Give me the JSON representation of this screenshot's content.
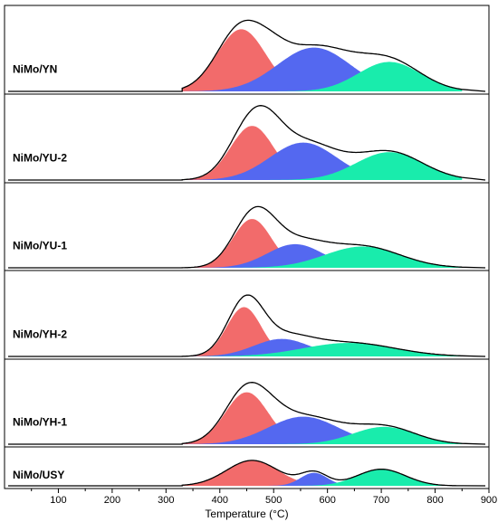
{
  "chart_data": {
    "type": "area",
    "xlabel": "Temperature (°C)",
    "xlim": [
      0,
      900
    ],
    "x_ticks": [
      100,
      200,
      300,
      400,
      500,
      600,
      700,
      800,
      900
    ],
    "colors": {
      "peak1": "#f26b6b",
      "peak2": "#5468f0",
      "peak3": "#19ecac",
      "envelope": "#000000"
    },
    "panels": [
      {
        "label": "NiMo/YN",
        "peaks": [
          {
            "center": 440,
            "amplitude": 0.78,
            "width": 45
          },
          {
            "center": 575,
            "amplitude": 0.55,
            "width": 68
          },
          {
            "center": 715,
            "amplitude": 0.37,
            "width": 58
          }
        ],
        "envelope_bump": {
          "center": 500,
          "amplitude": 0.12,
          "width": 30
        }
      },
      {
        "label": "NiMo/YU-2",
        "peaks": [
          {
            "center": 460,
            "amplitude": 0.68,
            "width": 40
          },
          {
            "center": 555,
            "amplitude": 0.47,
            "width": 62
          },
          {
            "center": 715,
            "amplitude": 0.35,
            "width": 62
          }
        ],
        "envelope_bump": {
          "center": 495,
          "amplitude": 0.12,
          "width": 30
        }
      },
      {
        "label": "NiMo/YU-1",
        "peaks": [
          {
            "center": 460,
            "amplitude": 0.62,
            "width": 36
          },
          {
            "center": 540,
            "amplitude": 0.3,
            "width": 52
          },
          {
            "center": 665,
            "amplitude": 0.27,
            "width": 70
          }
        ],
        "envelope_bump": {
          "center": 495,
          "amplitude": 0.08,
          "width": 28
        }
      },
      {
        "label": "NiMo/YH-2",
        "peaks": [
          {
            "center": 445,
            "amplitude": 0.62,
            "width": 32
          },
          {
            "center": 515,
            "amplitude": 0.22,
            "width": 52
          },
          {
            "center": 640,
            "amplitude": 0.17,
            "width": 85
          }
        ],
        "envelope_bump": {
          "center": 470,
          "amplitude": 0.06,
          "width": 25
        }
      },
      {
        "label": "NiMo/YH-1",
        "peaks": [
          {
            "center": 450,
            "amplitude": 0.66,
            "width": 40
          },
          {
            "center": 555,
            "amplitude": 0.35,
            "width": 65
          },
          {
            "center": 705,
            "amplitude": 0.22,
            "width": 58
          }
        ],
        "envelope_bump": {
          "center": 500,
          "amplitude": 0.06,
          "width": 30
        }
      },
      {
        "label": "NiMo/USY",
        "peaks": [
          {
            "center": 460,
            "amplitude": 0.78,
            "width": 48
          },
          {
            "center": 575,
            "amplitude": 0.4,
            "width": 25
          },
          {
            "center": 700,
            "amplitude": 0.51,
            "width": 45
          }
        ],
        "envelope_bump": null
      }
    ]
  }
}
